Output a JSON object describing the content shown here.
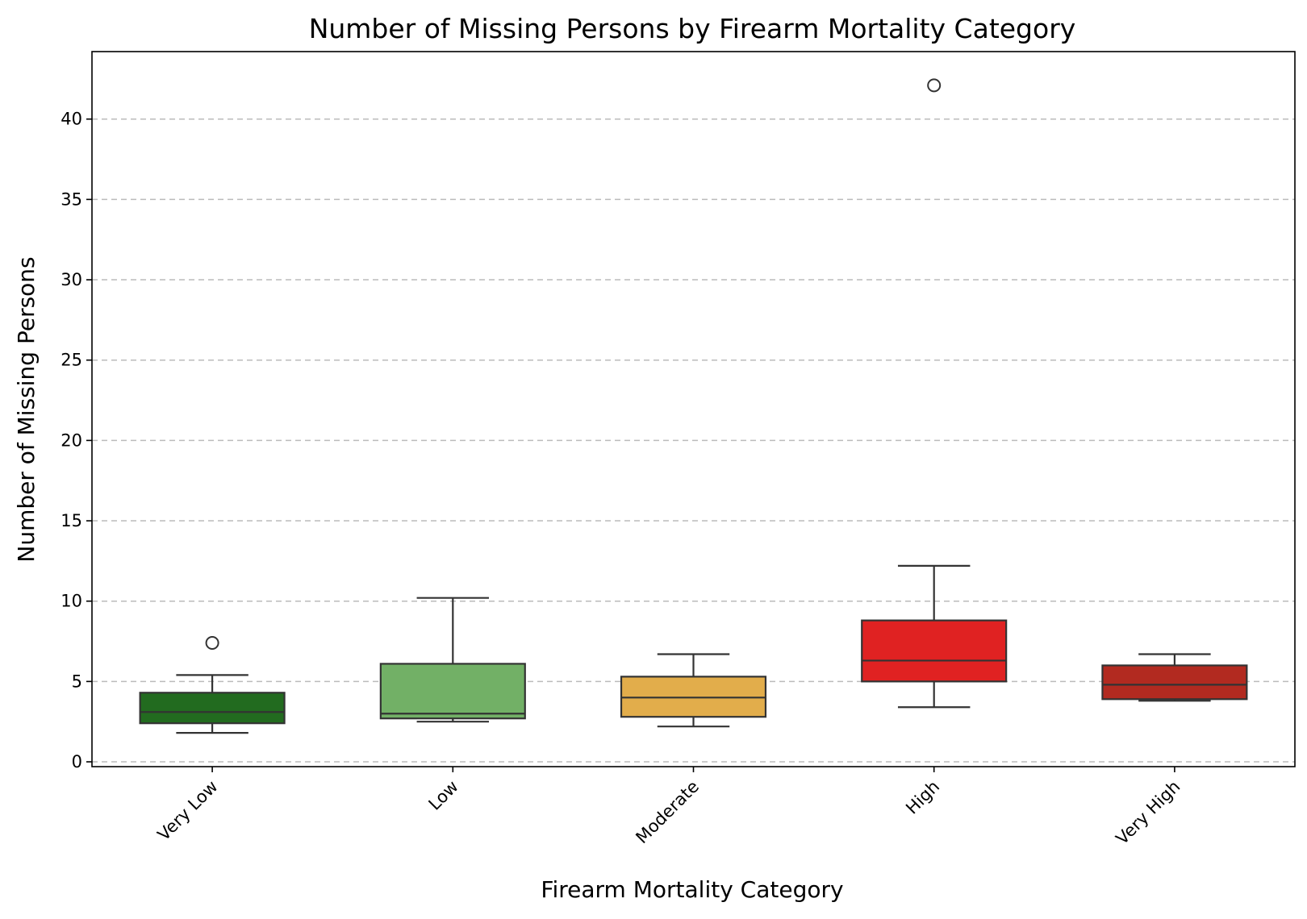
{
  "chart_data": {
    "type": "box",
    "title": "Number of Missing Persons by Firearm Mortality Category",
    "xlabel": "Firearm Mortality Category",
    "ylabel": "Number of Missing Persons",
    "ylim": [
      -0.3,
      44.2
    ],
    "yticks": [
      0,
      5,
      10,
      15,
      20,
      25,
      30,
      35,
      40
    ],
    "grid": "horizontal dashed",
    "categories": [
      "Very Low",
      "Low",
      "Moderate",
      "High",
      "Very High"
    ],
    "boxes": [
      {
        "category": "Very Low",
        "color": "#226b1f",
        "whisker_low": 1.8,
        "q1": 2.4,
        "median": 3.1,
        "q3": 4.3,
        "whisker_high": 5.4,
        "outliers": [
          7.4
        ]
      },
      {
        "category": "Low",
        "color": "#72b066",
        "whisker_low": 2.5,
        "q1": 2.7,
        "median": 3.0,
        "q3": 6.1,
        "whisker_high": 10.2,
        "outliers": []
      },
      {
        "category": "Moderate",
        "color": "#e2ad4b",
        "whisker_low": 2.2,
        "q1": 2.8,
        "median": 4.0,
        "q3": 5.3,
        "whisker_high": 6.7,
        "outliers": []
      },
      {
        "category": "High",
        "color": "#e02222",
        "whisker_low": 3.4,
        "q1": 5.0,
        "median": 6.3,
        "q3": 8.8,
        "whisker_high": 12.2,
        "outliers": [
          42.1
        ]
      },
      {
        "category": "Very High",
        "color": "#b22a20",
        "whisker_low": 3.8,
        "q1": 3.9,
        "median": 4.8,
        "q3": 6.0,
        "whisker_high": 6.7,
        "outliers": []
      }
    ]
  }
}
